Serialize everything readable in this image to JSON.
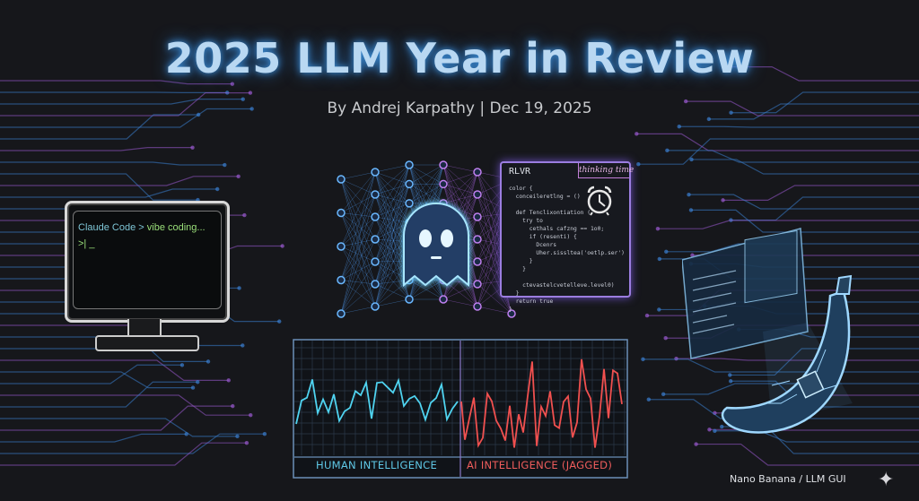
{
  "header": {
    "title": "2025 LLM Year in Review",
    "subtitle": "By Andrej Karpathy | Dec 19, 2025"
  },
  "terminal": {
    "prompt_line_prefix": "Claude Code >",
    "prompt_line_command": "vibe coding...",
    "cursor_line": ">| _"
  },
  "code_panel": {
    "header": "RLVR",
    "tag": "thinking time",
    "icon": "alarm-clock-icon",
    "lines": "color {\n  conceileretlng = ()\n\n  def Tenclixontiation (\n    try to\n      cethals cafzng == 1o0;\n      if (resenti) {\n        Dcenrs\n        Uher.sissltea('oetlp.ser')\n      }\n    }\n\n    ctevastelcvetelleve.level0)\n  }\n  return true\n}"
  },
  "comparison_panel": {
    "left_label": "HUMAN INTELLIGENCE",
    "right_label": "AI INTELLIGENCE (JAGGED)",
    "left_color": "#4fd3f0",
    "right_color": "#f0504f"
  },
  "caption": "Nano Banana / LLM GUI",
  "colors": {
    "background": "#16171b",
    "title_glow": "#3d8fd8",
    "circuit_blue": "#3a7fd0",
    "circuit_purple": "#9a5ad0"
  }
}
